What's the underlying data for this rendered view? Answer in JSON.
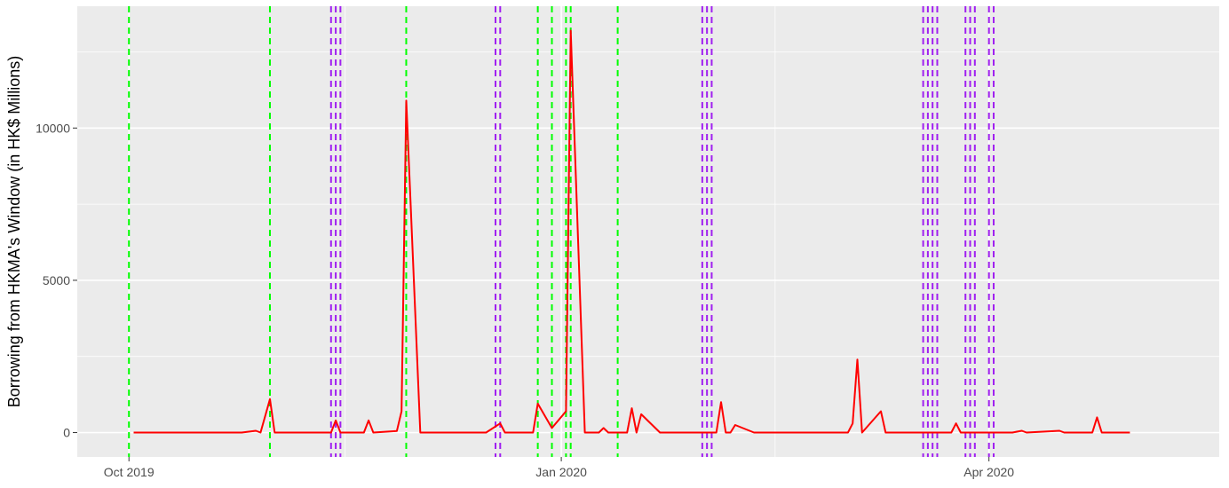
{
  "chart_data": {
    "type": "line",
    "title": "",
    "xlabel": "",
    "ylabel": "Borrowing from HKMA's Window (in HK$ Millions)",
    "x_tick_labels": [
      "Oct 2019",
      "Jan 2020",
      "Apr 2020"
    ],
    "x_ticks": [
      "2019-10-01",
      "2020-01-01",
      "2020-04-01"
    ],
    "y_tick_labels": [
      "0",
      "5000",
      "10000"
    ],
    "y_ticks": [
      0,
      5000,
      10000
    ],
    "xlim": [
      "2019-09-20",
      "2020-05-20"
    ],
    "ylim": [
      -800,
      14000
    ],
    "grid": true,
    "background": "#ebebeb",
    "colors": {
      "series": "#ff0000",
      "event_green": "#00ff00",
      "event_purple": "#a020f0",
      "gridline": "#ffffff"
    },
    "series": [
      {
        "points": [
          [
            "2019-10-02",
            0
          ],
          [
            "2019-10-25",
            0
          ],
          [
            "2019-10-28",
            60
          ],
          [
            "2019-10-29",
            0
          ],
          [
            "2019-10-31",
            1100
          ],
          [
            "2019-11-01",
            0
          ],
          [
            "2019-11-13",
            0
          ],
          [
            "2019-11-14",
            400
          ],
          [
            "2019-11-15",
            0
          ],
          [
            "2019-11-20",
            0
          ],
          [
            "2019-11-21",
            400
          ],
          [
            "2019-11-22",
            0
          ],
          [
            "2019-11-27",
            50
          ],
          [
            "2019-11-28",
            700
          ],
          [
            "2019-11-29",
            10900
          ],
          [
            "2019-12-02",
            0
          ],
          [
            "2019-12-16",
            0
          ],
          [
            "2019-12-19",
            300
          ],
          [
            "2019-12-20",
            0
          ],
          [
            "2019-12-26",
            0
          ],
          [
            "2019-12-27",
            950
          ],
          [
            "2019-12-30",
            150
          ],
          [
            "2020-01-02",
            700
          ],
          [
            "2020-01-03",
            13200
          ],
          [
            "2020-01-06",
            0
          ],
          [
            "2020-01-09",
            0
          ],
          [
            "2020-01-10",
            150
          ],
          [
            "2020-01-11",
            0
          ],
          [
            "2020-01-15",
            0
          ],
          [
            "2020-01-16",
            800
          ],
          [
            "2020-01-17",
            0
          ],
          [
            "2020-01-18",
            600
          ],
          [
            "2020-01-22",
            0
          ],
          [
            "2020-02-03",
            0
          ],
          [
            "2020-02-04",
            1000
          ],
          [
            "2020-02-05",
            0
          ],
          [
            "2020-02-06",
            0
          ],
          [
            "2020-02-07",
            250
          ],
          [
            "2020-02-11",
            0
          ],
          [
            "2020-03-02",
            0
          ],
          [
            "2020-03-03",
            300
          ],
          [
            "2020-03-04",
            2400
          ],
          [
            "2020-03-05",
            0
          ],
          [
            "2020-03-09",
            700
          ],
          [
            "2020-03-10",
            0
          ],
          [
            "2020-03-24",
            0
          ],
          [
            "2020-03-25",
            300
          ],
          [
            "2020-03-26",
            0
          ],
          [
            "2020-04-06",
            0
          ],
          [
            "2020-04-08",
            60
          ],
          [
            "2020-04-09",
            0
          ],
          [
            "2020-04-16",
            60
          ],
          [
            "2020-04-17",
            0
          ],
          [
            "2020-04-23",
            0
          ],
          [
            "2020-04-24",
            500
          ],
          [
            "2020-04-25",
            0
          ],
          [
            "2020-05-01",
            0
          ]
        ]
      }
    ],
    "event_lines": {
      "green": [
        "2019-10-01",
        "2019-10-31",
        "2019-11-29",
        "2019-12-27",
        "2019-12-30",
        "2020-01-02",
        "2020-01-03",
        "2020-01-13"
      ],
      "purple": [
        "2019-11-13",
        "2019-11-14",
        "2019-11-15",
        "2019-12-18",
        "2019-12-19",
        "2020-01-31",
        "2020-02-01",
        "2020-02-02",
        "2020-03-18",
        "2020-03-19",
        "2020-03-20",
        "2020-03-21",
        "2020-03-27",
        "2020-03-28",
        "2020-03-29",
        "2020-04-01",
        "2020-04-02"
      ]
    }
  }
}
